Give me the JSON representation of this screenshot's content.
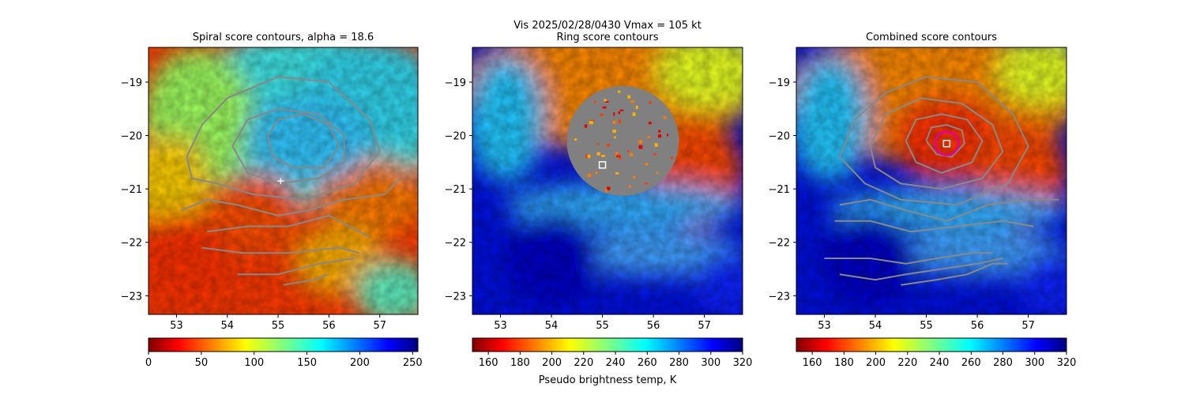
{
  "figure": {
    "suptitle_line1": "Vis  2025/02/28/0430    Vmax = 105 kt",
    "colorbar_label": "Pseudo brightness temp, K"
  },
  "chart_data": [
    {
      "type": "heatmap",
      "title": "Spiral score contours, alpha = 18.6",
      "colormap": "jet_reversed",
      "x_ticks": [
        53,
        54,
        55,
        56,
        57
      ],
      "y_ticks": [
        -19,
        -20,
        -21,
        -22,
        -23
      ],
      "xlim": [
        52.45,
        57.75
      ],
      "ylim": [
        -23.35,
        -18.35
      ],
      "colorbar": {
        "range": [
          0,
          255
        ],
        "ticks": [
          0,
          50,
          100,
          150,
          200,
          250
        ]
      },
      "contours": {
        "color": "#888888",
        "levels": [
          [
            [
              53.2,
              -20.4
            ],
            [
              53.5,
              -19.8
            ],
            [
              54.0,
              -19.3
            ],
            [
              55.0,
              -18.9
            ],
            [
              56.0,
              -19.0
            ],
            [
              56.8,
              -19.7
            ],
            [
              57.0,
              -20.3
            ],
            [
              56.5,
              -20.9
            ],
            [
              55.5,
              -21.2
            ],
            [
              54.5,
              -21.1
            ],
            [
              53.8,
              -20.9
            ],
            [
              53.3,
              -20.8
            ],
            [
              53.2,
              -20.4
            ]
          ],
          [
            [
              54.1,
              -20.2
            ],
            [
              54.4,
              -19.7
            ],
            [
              55.0,
              -19.5
            ],
            [
              55.8,
              -19.6
            ],
            [
              56.3,
              -20.0
            ],
            [
              56.3,
              -20.5
            ],
            [
              55.8,
              -20.8
            ],
            [
              55.0,
              -20.9
            ],
            [
              54.4,
              -20.7
            ],
            [
              54.1,
              -20.2
            ]
          ],
          [
            [
              54.8,
              -20.0
            ],
            [
              55.0,
              -19.7
            ],
            [
              55.5,
              -19.6
            ],
            [
              56.0,
              -19.8
            ],
            [
              56.2,
              -20.2
            ],
            [
              55.9,
              -20.6
            ],
            [
              55.3,
              -20.6
            ],
            [
              54.9,
              -20.4
            ],
            [
              54.8,
              -20.0
            ]
          ],
          [
            [
              53.1,
              -21.4
            ],
            [
              53.6,
              -21.2
            ],
            [
              54.2,
              -21.3
            ],
            [
              55.0,
              -21.5
            ],
            [
              55.6,
              -21.4
            ],
            [
              56.3,
              -21.2
            ],
            [
              57.1,
              -21.1
            ],
            [
              57.4,
              -20.8
            ]
          ],
          [
            [
              53.6,
              -21.8
            ],
            [
              54.4,
              -21.7
            ],
            [
              55.2,
              -21.7
            ],
            [
              56.0,
              -21.5
            ],
            [
              56.8,
              -21.9
            ]
          ],
          [
            [
              53.5,
              -22.1
            ],
            [
              54.3,
              -22.2
            ],
            [
              55.2,
              -22.2
            ],
            [
              56.2,
              -22.1
            ],
            [
              56.6,
              -22.2
            ]
          ],
          [
            [
              54.2,
              -22.6
            ],
            [
              55.0,
              -22.6
            ],
            [
              55.8,
              -22.4
            ],
            [
              56.5,
              -22.3
            ]
          ],
          [
            [
              55.1,
              -22.8
            ],
            [
              55.7,
              -22.7
            ],
            [
              56.0,
              -22.6
            ]
          ]
        ]
      },
      "markers": [
        {
          "kind": "plus",
          "x": 55.05,
          "y": -20.85,
          "color": "#ffffff"
        }
      ]
    },
    {
      "type": "heatmap",
      "title": "Ring score contours",
      "colormap": "jet_reversed",
      "x_ticks": [
        53,
        54,
        55,
        56,
        57
      ],
      "y_ticks": [
        -19,
        -20,
        -21,
        -22,
        -23
      ],
      "xlim": [
        52.45,
        57.75
      ],
      "ylim": [
        -23.35,
        -18.35
      ],
      "colorbar": {
        "range": [
          150,
          320
        ],
        "ticks": [
          160,
          180,
          200,
          220,
          240,
          260,
          280,
          300,
          320
        ]
      },
      "masked_disk": {
        "cx": 55.4,
        "cy": -20.1,
        "r": 1.1,
        "color": "#808080"
      },
      "markers": [
        {
          "kind": "square",
          "x": 55.0,
          "y": -20.55,
          "color": "#ffffff"
        }
      ]
    },
    {
      "type": "heatmap",
      "title": "Combined score contours",
      "colormap": "jet_reversed",
      "x_ticks": [
        53,
        54,
        55,
        56,
        57
      ],
      "y_ticks": [
        -19,
        -20,
        -21,
        -22,
        -23
      ],
      "xlim": [
        52.45,
        57.75
      ],
      "ylim": [
        -23.35,
        -18.35
      ],
      "colorbar": {
        "range": [
          150,
          320
        ],
        "ticks": [
          160,
          180,
          200,
          220,
          240,
          260,
          280,
          300,
          320
        ]
      },
      "contours": {
        "color": "#888888",
        "levels": [
          [
            [
              53.3,
              -20.4
            ],
            [
              53.6,
              -19.7
            ],
            [
              54.2,
              -19.2
            ],
            [
              55.0,
              -18.9
            ],
            [
              56.0,
              -19.0
            ],
            [
              56.7,
              -19.6
            ],
            [
              57.0,
              -20.2
            ],
            [
              56.6,
              -20.9
            ],
            [
              55.6,
              -21.3
            ],
            [
              54.5,
              -21.2
            ],
            [
              53.8,
              -20.9
            ],
            [
              53.3,
              -20.4
            ]
          ],
          [
            [
              53.9,
              -20.2
            ],
            [
              54.2,
              -19.6
            ],
            [
              54.9,
              -19.3
            ],
            [
              55.7,
              -19.4
            ],
            [
              56.3,
              -19.8
            ],
            [
              56.5,
              -20.3
            ],
            [
              56.1,
              -20.8
            ],
            [
              55.3,
              -21.0
            ],
            [
              54.5,
              -20.9
            ],
            [
              54.0,
              -20.6
            ],
            [
              53.9,
              -20.2
            ]
          ],
          [
            [
              54.6,
              -20.1
            ],
            [
              54.8,
              -19.7
            ],
            [
              55.3,
              -19.6
            ],
            [
              55.8,
              -19.7
            ],
            [
              56.1,
              -20.1
            ],
            [
              55.9,
              -20.5
            ],
            [
              55.3,
              -20.7
            ],
            [
              54.8,
              -20.5
            ],
            [
              54.6,
              -20.1
            ]
          ],
          [
            [
              55.0,
              -20.1
            ],
            [
              55.1,
              -19.85
            ],
            [
              55.4,
              -19.8
            ],
            [
              55.7,
              -19.9
            ],
            [
              55.75,
              -20.15
            ],
            [
              55.5,
              -20.4
            ],
            [
              55.2,
              -20.35
            ],
            [
              55.0,
              -20.1
            ]
          ],
          [
            [
              53.3,
              -21.3
            ],
            [
              53.9,
              -21.2
            ],
            [
              54.6,
              -21.4
            ],
            [
              55.4,
              -21.6
            ],
            [
              56.2,
              -21.3
            ],
            [
              57.0,
              -21.2
            ],
            [
              57.6,
              -21.2
            ]
          ],
          [
            [
              53.2,
              -21.6
            ],
            [
              53.9,
              -21.6
            ],
            [
              54.7,
              -21.8
            ],
            [
              55.6,
              -21.7
            ],
            [
              56.5,
              -21.6
            ],
            [
              57.1,
              -21.7
            ]
          ],
          [
            [
              53.0,
              -22.3
            ],
            [
              53.9,
              -22.3
            ],
            [
              54.6,
              -22.4
            ],
            [
              55.2,
              -22.3
            ],
            [
              55.9,
              -22.2
            ],
            [
              56.3,
              -22.2
            ]
          ],
          [
            [
              53.3,
              -22.6
            ],
            [
              54.0,
              -22.7
            ],
            [
              54.6,
              -22.6
            ],
            [
              55.3,
              -22.5
            ],
            [
              56.0,
              -22.4
            ],
            [
              56.5,
              -22.3
            ]
          ],
          [
            [
              54.5,
              -22.8
            ],
            [
              55.2,
              -22.7
            ],
            [
              55.8,
              -22.6
            ],
            [
              56.3,
              -22.4
            ],
            [
              56.6,
              -22.4
            ]
          ]
        ]
      },
      "markers": [
        {
          "kind": "square",
          "x": 55.4,
          "y": -20.15,
          "color": "#ffffff"
        },
        {
          "kind": "circle",
          "x": 55.4,
          "y": -20.15,
          "r": 0.23,
          "color": "#e000a0"
        }
      ]
    }
  ]
}
